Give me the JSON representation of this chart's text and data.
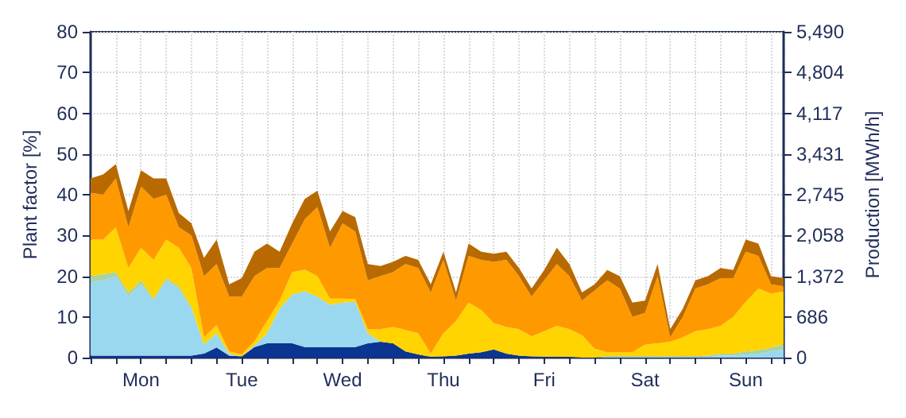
{
  "chart_data": {
    "type": "area",
    "stacked": true,
    "ylabel": "Plant factor [%]",
    "y2label": "Production [MWh/h]",
    "categories": [
      null,
      null,
      null,
      null,
      "Mon",
      null,
      null,
      null,
      null,
      null,
      null,
      null,
      "Tue",
      null,
      null,
      null,
      null,
      null,
      null,
      null,
      "Wed",
      null,
      null,
      null,
      null,
      null,
      null,
      null,
      "Thu",
      null,
      null,
      null,
      null,
      null,
      null,
      null,
      "Fri",
      null,
      null,
      null,
      null,
      null,
      null,
      null,
      "Sat",
      null,
      null,
      null,
      null,
      null,
      null,
      null,
      "Sun",
      null,
      null,
      null
    ],
    "ylim": [
      0,
      80
    ],
    "yticks": [
      0,
      10,
      20,
      30,
      40,
      50,
      60,
      70,
      80
    ],
    "y2lim": [
      0,
      5490
    ],
    "y2ticks": [
      0,
      686,
      {
        "value": 1372,
        "label": "1,372"
      },
      {
        "value": 2058,
        "label": "2,058"
      },
      {
        "value": 2745,
        "label": "2,745"
      },
      {
        "value": 3431,
        "label": "3,431"
      },
      {
        "value": 4117,
        "label": "4,117"
      },
      {
        "value": 4804,
        "label": "4,804"
      },
      {
        "value": 5490,
        "label": "5,490"
      }
    ],
    "grid": true,
    "series": [
      {
        "color": "#0a3591",
        "values": [
          0.5,
          0.5,
          0.5,
          0.5,
          0.5,
          0.5,
          0.5,
          0.5,
          0.5,
          1,
          2.5,
          0.5,
          0.3,
          2.6,
          3.5,
          3.5,
          3.5,
          2.6,
          2.6,
          2.6,
          2.6,
          2.6,
          3.5,
          3.9,
          3.5,
          1.5,
          0.8,
          0.2,
          0.3,
          0.5,
          1,
          1.3,
          2,
          1,
          0.5,
          0.3,
          0.2,
          0.2,
          0.2,
          0,
          0,
          0,
          0,
          0,
          0,
          0,
          0,
          0,
          0,
          0,
          0,
          0,
          0,
          0,
          0,
          0
        ]
      },
      {
        "color": "#9ad8ef",
        "values": [
          18,
          18.5,
          19.5,
          14.5,
          17.5,
          13.5,
          18.5,
          16.5,
          11.5,
          2.2,
          3.5,
          0.5,
          0,
          0.4,
          2.5,
          8.5,
          12,
          13.7,
          12.4,
          10.4,
          10.9,
          11.1,
          2.5,
          0,
          0,
          0,
          0,
          0,
          0,
          0,
          0,
          0,
          0,
          0,
          0,
          0,
          0,
          0,
          0,
          0,
          0,
          0.3,
          0.3,
          0.3,
          0.3,
          0.3,
          0.3,
          0.3,
          0.3,
          0.3,
          0.5,
          0.5,
          0.8,
          1,
          1.5,
          2
        ]
      },
      {
        "color": "#a9d3a2",
        "values": [
          1.5,
          1.5,
          1,
          1,
          1,
          0.5,
          0.5,
          0.5,
          0.5,
          0,
          0,
          0,
          0,
          0,
          0,
          0,
          0,
          0,
          0,
          0,
          0,
          0,
          0,
          0,
          0,
          0,
          0,
          0,
          0,
          0,
          0,
          0,
          0,
          0,
          0,
          0,
          0,
          0,
          0,
          0,
          0,
          0,
          0,
          0,
          0,
          0,
          0,
          0,
          0,
          0.2,
          0.5,
          0.5,
          0.7,
          0.8,
          1,
          1.2
        ]
      },
      {
        "color": "#ffd400",
        "values": [
          9,
          8.5,
          11,
          6,
          8,
          9.5,
          9.5,
          9.5,
          9.5,
          1.8,
          2,
          0.5,
          0.5,
          1,
          3,
          2,
          5.5,
          5.3,
          5,
          1.5,
          1,
          0.7,
          1,
          3.1,
          4,
          5.3,
          5.2,
          0.8,
          5.7,
          8.5,
          12.5,
          10.4,
          6.5,
          6.5,
          6.5,
          4.9,
          6.3,
          7.6,
          6.8,
          5.5,
          2.2,
          1,
          1,
          1,
          2.9,
          3.2,
          3.6,
          4.7,
          6.2,
          6.5,
          6.8,
          9,
          12.2,
          15.2,
          13.2,
          13.1
        ]
      },
      {
        "color": "#ff9900",
        "values": [
          11.5,
          11,
          12,
          10,
          15,
          15,
          11,
          5,
          8,
          15,
          15,
          13.5,
          14.2,
          16,
          13,
          8,
          7,
          12.4,
          17,
          12.5,
          18.5,
          16.6,
          12,
          13,
          13.5,
          16.2,
          16,
          15,
          18,
          5,
          11.5,
          12.3,
          15,
          16.5,
          13,
          9.8,
          12.5,
          15.2,
          13,
          8.5,
          14.3,
          17.7,
          15.7,
          8.7,
          7.8,
          16.5,
          1.1,
          5,
          10.5,
          11,
          11.7,
          9.5,
          12.3,
          8,
          2.3,
          1.2
        ]
      },
      {
        "color": "#b86a00",
        "values": [
          3.5,
          5,
          3.5,
          4,
          4,
          5,
          4,
          3.5,
          3,
          4.5,
          6,
          3,
          4.5,
          6,
          6,
          4,
          5,
          5,
          4,
          4,
          3,
          3.5,
          4,
          2.5,
          2.5,
          2,
          2,
          2,
          2,
          2,
          3,
          2,
          2,
          2,
          2,
          2,
          2.5,
          4,
          3,
          2,
          1.5,
          2.5,
          3,
          3.5,
          3,
          3,
          2,
          2,
          2,
          2,
          2.5,
          2,
          3,
          3,
          2,
          2
        ]
      }
    ]
  }
}
